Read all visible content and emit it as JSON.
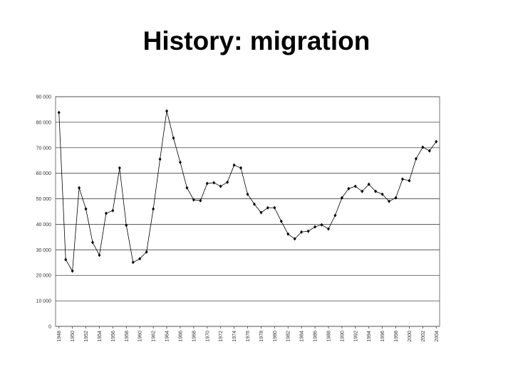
{
  "chart_data": {
    "type": "line",
    "title": "History: migration",
    "x": [
      1948,
      1949,
      1950,
      1951,
      1952,
      1953,
      1954,
      1955,
      1956,
      1957,
      1958,
      1959,
      1960,
      1961,
      1962,
      1963,
      1964,
      1965,
      1966,
      1967,
      1968,
      1969,
      1970,
      1971,
      1972,
      1973,
      1974,
      1975,
      1976,
      1977,
      1978,
      1979,
      1980,
      1981,
      1982,
      1983,
      1984,
      1985,
      1986,
      1987,
      1988,
      1989,
      1990,
      1991,
      1992,
      1993,
      1994,
      1995,
      1996,
      1997,
      1998,
      1999,
      2000,
      2001,
      2002,
      2003,
      2004
    ],
    "series": [
      {
        "color": "#000000",
        "values": [
          83800,
          26200,
          21700,
          54300,
          46000,
          32900,
          27900,
          44300,
          45400,
          62100,
          39600,
          25100,
          26500,
          29200,
          46000,
          65500,
          84400,
          73800,
          64300,
          54300,
          49600,
          49300,
          56000,
          56300,
          54900,
          56500,
          63200,
          62100,
          51800,
          47900,
          44600,
          46500,
          46500,
          41200,
          36200,
          34300,
          37000,
          37300,
          39000,
          39800,
          38200,
          43500,
          50400,
          54000,
          54900,
          52900,
          55700,
          52900,
          51800,
          49000,
          50400,
          57700,
          57100,
          65700,
          70200,
          68800,
          72400
        ]
      }
    ],
    "xlim": [
      1947.5,
      2004.5
    ],
    "xticks": [
      1948,
      1950,
      1952,
      1954,
      1956,
      1958,
      1960,
      1962,
      1964,
      1966,
      1968,
      1970,
      1972,
      1974,
      1976,
      1978,
      1980,
      1982,
      1984,
      1986,
      1988,
      1990,
      1992,
      1994,
      1996,
      1998,
      2000,
      2002,
      2004
    ],
    "ylim": [
      0,
      90000
    ],
    "yticks": [
      {
        "value": 0,
        "label": "0"
      },
      {
        "value": 10000,
        "label": "10 000"
      },
      {
        "value": 20000,
        "label": "20 000"
      },
      {
        "value": 30000,
        "label": "30 000"
      },
      {
        "value": 40000,
        "label": "40 000"
      },
      {
        "value": 50000,
        "label": "50 000"
      },
      {
        "value": 60000,
        "label": "60 000"
      },
      {
        "value": 70000,
        "label": "70 000"
      },
      {
        "value": 80000,
        "label": "80 000"
      },
      {
        "value": 90000,
        "label": "90 000"
      }
    ],
    "grid": true
  }
}
